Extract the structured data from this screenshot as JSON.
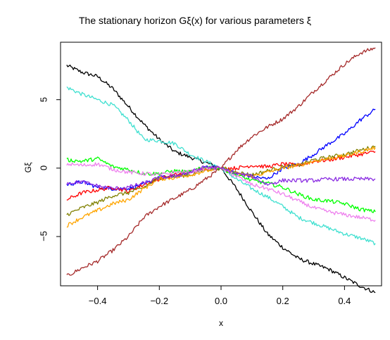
{
  "chart_data": {
    "type": "line",
    "title": "The stationary horizon Gξ(x) for various parameters ξ",
    "xlabel": "x",
    "ylabel": "Gξ",
    "xlim": [
      -0.52,
      0.52
    ],
    "ylim": [
      -8.6,
      9.2
    ],
    "x_ticks": [
      -0.4,
      -0.2,
      0.0,
      0.2,
      0.4
    ],
    "x_tick_labels": [
      "−0.4",
      "−0.2",
      "0.0",
      "0.2",
      "0.4"
    ],
    "y_ticks": [
      -5,
      0,
      5
    ],
    "y_tick_labels": [
      "−5",
      "0",
      "5"
    ],
    "grid": false,
    "legend": "none",
    "series": [
      {
        "color": "#000000",
        "x": [
          -0.5,
          -0.45,
          -0.4,
          -0.35,
          -0.3,
          -0.25,
          -0.2,
          -0.15,
          -0.1,
          -0.05,
          0,
          0.05,
          0.1,
          0.15,
          0.2,
          0.25,
          0.3,
          0.35,
          0.4,
          0.45,
          0.5
        ],
        "y": [
          7.5,
          7.0,
          6.7,
          5.8,
          4.5,
          3.2,
          2.1,
          1.2,
          0.8,
          0.4,
          0,
          -1.5,
          -3.2,
          -4.8,
          -5.8,
          -6.6,
          -7.0,
          -7.4,
          -8.0,
          -8.6,
          -9.1
        ]
      },
      {
        "color": "#40e0d0",
        "x": [
          -0.5,
          -0.45,
          -0.4,
          -0.35,
          -0.3,
          -0.25,
          -0.2,
          -0.15,
          -0.1,
          -0.05,
          0,
          0.05,
          0.1,
          0.15,
          0.2,
          0.25,
          0.3,
          0.35,
          0.4,
          0.45,
          0.5
        ],
        "y": [
          5.9,
          5.4,
          5.0,
          4.6,
          3.5,
          2.1,
          2.0,
          1.8,
          1.0,
          0.5,
          0,
          -0.8,
          -1.5,
          -2.1,
          -2.8,
          -3.6,
          -4.0,
          -4.4,
          -4.8,
          -5.1,
          -5.5
        ]
      },
      {
        "color": "#a52a2a",
        "x": [
          -0.5,
          -0.45,
          -0.4,
          -0.35,
          -0.3,
          -0.25,
          -0.2,
          -0.15,
          -0.1,
          -0.05,
          0,
          0.05,
          0.1,
          0.15,
          0.2,
          0.25,
          0.3,
          0.35,
          0.4,
          0.45,
          0.5
        ],
        "y": [
          -7.9,
          -7.3,
          -6.8,
          -6.0,
          -5.0,
          -3.6,
          -2.8,
          -2.2,
          -1.6,
          -0.8,
          0,
          1.3,
          2.3,
          3.0,
          3.6,
          4.5,
          5.6,
          6.6,
          7.6,
          8.4,
          8.8
        ]
      },
      {
        "color": "#0000ff",
        "x": [
          -0.5,
          -0.45,
          -0.4,
          -0.35,
          -0.3,
          -0.25,
          -0.2,
          -0.15,
          -0.1,
          -0.05,
          0,
          0.05,
          0.1,
          0.15,
          0.2,
          0.25,
          0.3,
          0.35,
          0.4,
          0.45,
          0.5
        ],
        "y": [
          -1.2,
          -1.0,
          -1.4,
          -1.5,
          -1.5,
          -1.2,
          -0.7,
          -0.6,
          -0.3,
          0.1,
          0,
          -0.4,
          -0.6,
          -0.8,
          0.0,
          0.3,
          1.0,
          1.8,
          2.5,
          3.5,
          4.3
        ]
      },
      {
        "color": "#ff0000",
        "x": [
          -0.5,
          -0.45,
          -0.4,
          -0.35,
          -0.3,
          -0.25,
          -0.2,
          -0.15,
          -0.1,
          -0.05,
          0,
          0.05,
          0.1,
          0.15,
          0.2,
          0.25,
          0.3,
          0.35,
          0.4,
          0.45,
          0.5
        ],
        "y": [
          -2.3,
          -1.8,
          -1.6,
          -1.4,
          -1.7,
          -1.2,
          -0.8,
          -0.5,
          -0.3,
          0.0,
          0,
          0.0,
          0.2,
          0.1,
          0.3,
          0.2,
          0.5,
          0.6,
          0.8,
          1.0,
          1.2
        ]
      },
      {
        "color": "#808000",
        "x": [
          -0.5,
          -0.45,
          -0.4,
          -0.35,
          -0.3,
          -0.25,
          -0.2,
          -0.15,
          -0.1,
          -0.05,
          0,
          0.05,
          0.1,
          0.15,
          0.2,
          0.25,
          0.3,
          0.35,
          0.4,
          0.45,
          0.5
        ],
        "y": [
          -3.4,
          -2.9,
          -2.5,
          -2.0,
          -1.8,
          -1.4,
          -0.7,
          -0.6,
          -0.5,
          -0.1,
          0,
          -0.3,
          -0.5,
          -0.2,
          0.1,
          0.2,
          0.6,
          0.8,
          1.0,
          1.3,
          1.6
        ]
      },
      {
        "color": "#ffa500",
        "x": [
          -0.5,
          -0.45,
          -0.4,
          -0.35,
          -0.3,
          -0.25,
          -0.2,
          -0.15,
          -0.1,
          -0.05,
          0,
          0.05,
          0.1,
          0.15,
          0.2,
          0.25,
          0.3,
          0.35,
          0.4,
          0.45,
          0.5
        ],
        "y": [
          -4.2,
          -3.6,
          -3.1,
          -2.6,
          -2.3,
          -1.5,
          -0.8,
          -0.7,
          -0.5,
          -0.2,
          0,
          -0.4,
          -0.6,
          -0.3,
          0.0,
          0.2,
          0.5,
          0.7,
          0.9,
          1.2,
          1.5
        ]
      },
      {
        "color": "#00ff00",
        "x": [
          -0.5,
          -0.45,
          -0.4,
          -0.35,
          -0.3,
          -0.25,
          -0.2,
          -0.15,
          -0.1,
          -0.05,
          0,
          0.05,
          0.1,
          0.15,
          0.2,
          0.25,
          0.3,
          0.35,
          0.4,
          0.45,
          0.5
        ],
        "y": [
          0.6,
          0.5,
          0.7,
          0.1,
          -0.1,
          -0.4,
          -0.4,
          -0.2,
          -0.3,
          0.1,
          0,
          -0.5,
          -0.9,
          -1.1,
          -1.4,
          -1.9,
          -2.3,
          -2.4,
          -2.6,
          -3.0,
          -3.2
        ]
      },
      {
        "color": "#ee82ee",
        "x": [
          -0.5,
          -0.45,
          -0.4,
          -0.35,
          -0.3,
          -0.25,
          -0.2,
          -0.15,
          -0.1,
          -0.05,
          0,
          0.05,
          0.1,
          0.15,
          0.2,
          0.25,
          0.3,
          0.35,
          0.4,
          0.45,
          0.5
        ],
        "y": [
          0.3,
          0.2,
          0.3,
          -0.1,
          -0.3,
          -0.4,
          -0.5,
          -0.3,
          -0.3,
          0.0,
          0,
          -0.6,
          -1.2,
          -1.5,
          -1.9,
          -2.4,
          -2.9,
          -3.2,
          -3.4,
          -3.6,
          -3.8
        ]
      },
      {
        "color": "#8a2be2",
        "x": [
          -0.5,
          -0.45,
          -0.4,
          -0.35,
          -0.3,
          -0.25,
          -0.2,
          -0.15,
          -0.1,
          -0.05,
          0,
          0.05,
          0.1,
          0.15,
          0.2,
          0.25,
          0.3,
          0.35,
          0.4,
          0.45,
          0.5
        ],
        "y": [
          -1.1,
          -1.0,
          -1.3,
          -1.5,
          -1.4,
          -1.1,
          -0.7,
          -0.6,
          -0.3,
          0.1,
          0,
          -0.4,
          -0.6,
          -1.2,
          -0.9,
          -0.9,
          -0.9,
          -0.8,
          -0.8,
          -0.8,
          -0.8
        ]
      }
    ]
  }
}
